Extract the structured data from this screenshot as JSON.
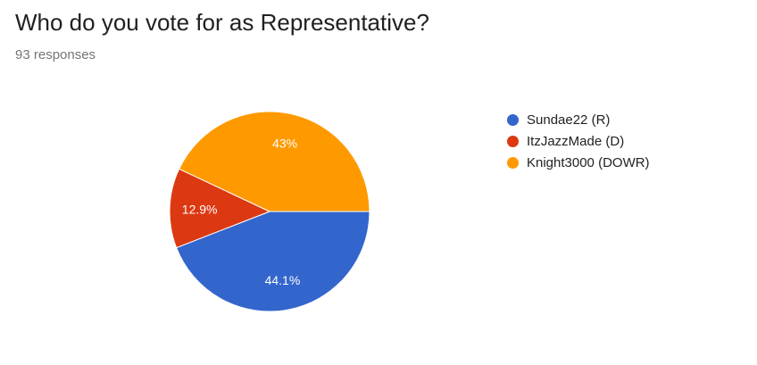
{
  "header": {
    "title": "Who do you vote for as Representative?",
    "responses": "93 responses"
  },
  "chart_data": {
    "type": "pie",
    "title": "Who do you vote for as Representative?",
    "labels": [
      "Sundae22 (R)",
      "ItzJazzMade (D)",
      "Knight3000 (DOWR)"
    ],
    "values": [
      44.1,
      12.9,
      43.0
    ],
    "value_labels": [
      "44.1%",
      "12.9%",
      "43%"
    ],
    "colors": [
      "#3366cc",
      "#dc3912",
      "#ff9900"
    ],
    "legend_position": "right"
  }
}
